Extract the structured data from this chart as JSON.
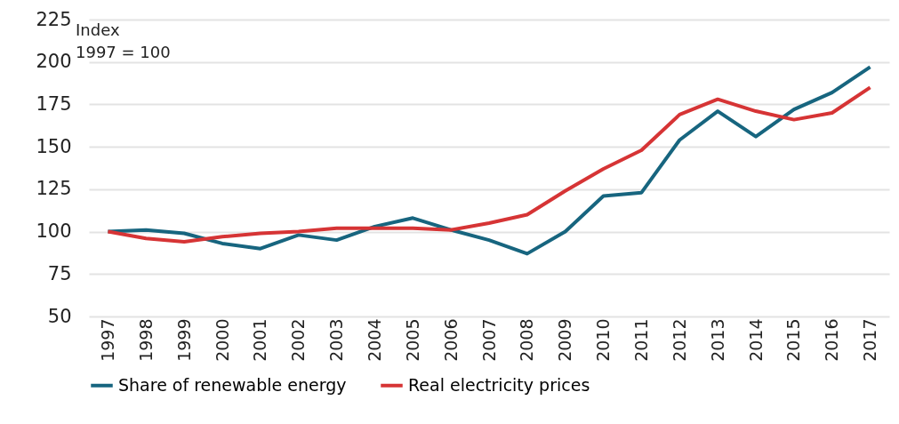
{
  "chart_data": {
    "type": "line",
    "categories": [
      "1997",
      "1998",
      "1999",
      "2000",
      "2001",
      "2002",
      "2003",
      "2004",
      "2005",
      "2006",
      "2007",
      "2008",
      "2009",
      "2010",
      "2011",
      "2012",
      "2013",
      "2014",
      "2015",
      "2016",
      "2017"
    ],
    "series": [
      {
        "name": "Share of renewable energy",
        "color": "#17657f",
        "values": [
          100,
          101,
          99,
          93,
          90,
          98,
          95,
          103,
          108,
          101,
          95,
          87,
          100,
          121,
          123,
          154,
          171,
          156,
          172,
          182,
          197
        ]
      },
      {
        "name": "Real electricity prices",
        "color": "#d63435",
        "values": [
          100,
          96,
          94,
          97,
          99,
          100,
          102,
          102,
          102,
          101,
          105,
          110,
          124,
          137,
          148,
          169,
          178,
          171,
          166,
          170,
          185
        ]
      }
    ],
    "ylim": [
      50,
      225
    ],
    "yticks": [
      50,
      75,
      100,
      125,
      150,
      175,
      200,
      225
    ],
    "grid": "y",
    "legend": "bottom",
    "line_style": "solid",
    "marker": "none",
    "annotations": [
      "Index",
      "1997 = 100"
    ]
  }
}
